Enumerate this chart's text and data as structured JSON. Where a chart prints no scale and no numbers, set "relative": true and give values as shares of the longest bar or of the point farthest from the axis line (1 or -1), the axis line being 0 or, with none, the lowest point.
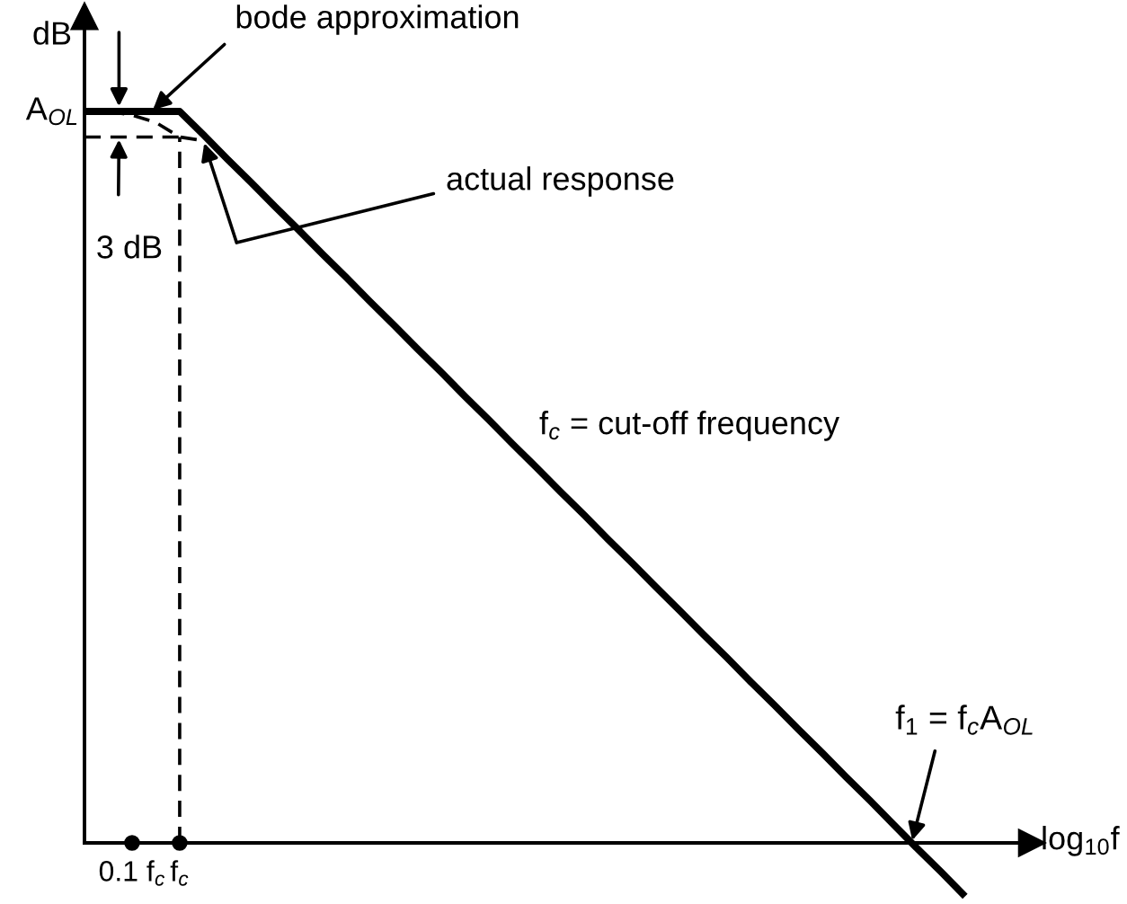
{
  "chart_data": {
    "type": "line",
    "relative": true,
    "xlabel": "log$_{10}$f",
    "ylabel": "dB",
    "categories": [
      null,
      null,
      "0.1 f$_{c}$",
      null,
      "f$_{c}$",
      null,
      null,
      null,
      null,
      null,
      null,
      null,
      null,
      null,
      null,
      null,
      null,
      null,
      null,
      null,
      null,
      null,
      null,
      null,
      null,
      null,
      null,
      null,
      null,
      null,
      null,
      null,
      null,
      null,
      null,
      null,
      null,
      null
    ],
    "series": [
      {
        "name": "bode approximation",
        "color": "#000000",
        "line_style": "solid",
        "values": [
          1,
          1,
          1,
          1,
          1,
          0.968,
          0.935,
          0.903,
          0.87,
          0.838,
          0.805,
          0.773,
          0.74,
          0.708,
          0.675,
          0.643,
          0.61,
          0.578,
          0.545,
          0.513,
          0.48,
          0.448,
          0.415,
          0.383,
          0.35,
          0.318,
          0.285,
          0.253,
          0.22,
          0.188,
          0.155,
          0.123,
          0.09,
          0.058,
          0.025,
          -0.008,
          -0.04,
          -0.073
        ]
      },
      {
        "name": "actual response",
        "color": "#000000",
        "line_style": "dashed",
        "values": [
          null,
          1,
          0.995,
          0.985,
          0.965,
          0.96,
          null,
          null,
          null,
          null,
          null,
          null,
          null,
          null,
          null,
          null,
          null,
          null,
          null,
          null,
          null,
          null,
          null,
          null,
          null,
          null,
          null,
          null,
          null,
          null,
          null,
          null,
          null,
          null,
          null,
          null,
          null,
          null
        ]
      }
    ],
    "ref_lines": [
      {
        "axis": "y",
        "value": 0.965,
        "color": "#000000",
        "line_style": "dashed"
      },
      {
        "axis": "x",
        "value": "f$_{c}$",
        "color": "#000000",
        "line_style": "dashed"
      }
    ],
    "annotations": [
      "A$_{OL}$",
      "3 dB",
      "f$_{c}$ = cut-off frequency",
      "f$_{1}$ = f$_{c}$A$_{OL}$"
    ]
  }
}
